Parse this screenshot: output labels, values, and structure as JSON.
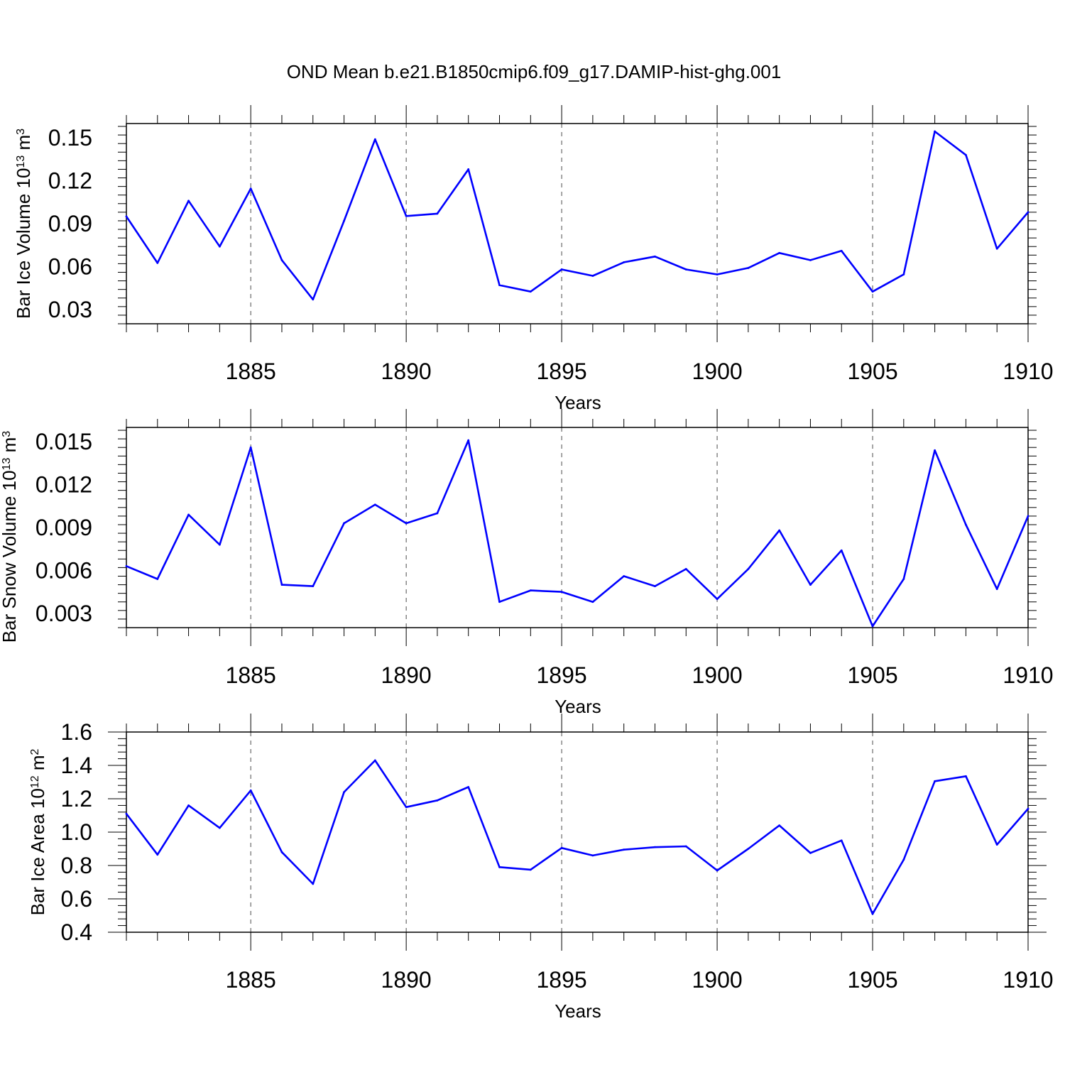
{
  "title": "OND Mean b.e21.B1850cmip6.f09_g17.DAMIP-hist-ghg.001",
  "colors": {
    "line": "#0000ff",
    "axis": "#000000",
    "grid": "#000000"
  },
  "chart_data": [
    {
      "type": "line",
      "title": "",
      "xlabel": "Years",
      "ylabel": "Bar Ice Volume 10",
      "ylabel_exp": "13",
      "ylabel_unit": " m",
      "ylabel_unit_exp": "3",
      "xlim": [
        1881,
        1910
      ],
      "ylim": [
        0.02,
        0.16
      ],
      "x_ticks": [
        1885,
        1890,
        1895,
        1900,
        1905,
        1910
      ],
      "y_ticks": [
        0.03,
        0.06,
        0.09,
        0.12,
        0.15
      ],
      "y_tick_labels": [
        "0.03",
        "0.06",
        "0.09",
        "0.12",
        "0.15"
      ],
      "grid": "vertical dashed at major x ticks",
      "x": [
        1881,
        1882,
        1883,
        1884,
        1885,
        1886,
        1887,
        1888,
        1889,
        1890,
        1891,
        1892,
        1893,
        1894,
        1895,
        1896,
        1897,
        1898,
        1899,
        1900,
        1901,
        1902,
        1903,
        1904,
        1905,
        1906,
        1907,
        1908,
        1909,
        1910
      ],
      "series": [
        {
          "values": [
            0.095,
            0.0625,
            0.106,
            0.074,
            0.1145,
            0.0645,
            0.037,
            0.092,
            0.149,
            0.0953,
            0.097,
            0.128,
            0.047,
            0.0425,
            0.058,
            0.0535,
            0.063,
            0.067,
            0.058,
            0.0545,
            0.059,
            0.0695,
            0.0645,
            0.071,
            0.0425,
            0.0545,
            0.1545,
            0.138,
            0.0725,
            0.098
          ]
        }
      ]
    },
    {
      "type": "line",
      "title": "",
      "xlabel": "Years",
      "ylabel": "Bar Snow Volume 10",
      "ylabel_exp": "13",
      "ylabel_unit": " m",
      "ylabel_unit_exp": "3",
      "xlim": [
        1881,
        1910
      ],
      "ylim": [
        0.002,
        0.016
      ],
      "x_ticks": [
        1885,
        1890,
        1895,
        1900,
        1905,
        1910
      ],
      "y_ticks": [
        0.003,
        0.006,
        0.009,
        0.012,
        0.015
      ],
      "y_tick_labels": [
        "0.003",
        "0.006",
        "0.009",
        "0.012",
        "0.015"
      ],
      "grid": "vertical dashed at major x ticks",
      "x": [
        1881,
        1882,
        1883,
        1884,
        1885,
        1886,
        1887,
        1888,
        1889,
        1890,
        1891,
        1892,
        1893,
        1894,
        1895,
        1896,
        1897,
        1898,
        1899,
        1900,
        1901,
        1902,
        1903,
        1904,
        1905,
        1906,
        1907,
        1908,
        1909,
        1910
      ],
      "series": [
        {
          "values": [
            0.0063,
            0.0054,
            0.0099,
            0.0078,
            0.0146,
            0.005,
            0.0049,
            0.0093,
            0.0106,
            0.0093,
            0.01,
            0.0151,
            0.0038,
            0.0046,
            0.0045,
            0.0038,
            0.0056,
            0.0049,
            0.0061,
            0.004,
            0.0061,
            0.0088,
            0.005,
            0.0074,
            0.0021,
            0.0054,
            0.0144,
            0.0092,
            0.0047,
            0.0098
          ]
        }
      ]
    },
    {
      "type": "line",
      "title": "",
      "xlabel": "Years",
      "ylabel": "Bar Ice Area 10",
      "ylabel_exp": "12",
      "ylabel_unit": " m",
      "ylabel_unit_exp": "2",
      "xlim": [
        1881,
        1910
      ],
      "ylim": [
        0.4,
        1.6
      ],
      "x_ticks": [
        1885,
        1890,
        1895,
        1900,
        1905,
        1910
      ],
      "y_ticks": [
        0.4,
        0.6,
        0.8,
        1.0,
        1.2,
        1.4,
        1.6
      ],
      "y_tick_labels": [
        "0.4",
        "0.6",
        "0.8",
        "1.0",
        "1.2",
        "1.4",
        "1.6"
      ],
      "grid": "vertical dashed at major x ticks",
      "x": [
        1881,
        1882,
        1883,
        1884,
        1885,
        1886,
        1887,
        1888,
        1889,
        1890,
        1891,
        1892,
        1893,
        1894,
        1895,
        1896,
        1897,
        1898,
        1899,
        1900,
        1901,
        1902,
        1903,
        1904,
        1905,
        1906,
        1907,
        1908,
        1909,
        1910
      ],
      "series": [
        {
          "values": [
            1.11,
            0.865,
            1.16,
            1.025,
            1.25,
            0.88,
            0.69,
            1.24,
            1.43,
            1.15,
            1.19,
            1.27,
            0.79,
            0.775,
            0.905,
            0.86,
            0.895,
            0.91,
            0.915,
            0.77,
            0.9,
            1.04,
            0.875,
            0.95,
            0.51,
            0.835,
            1.305,
            1.335,
            0.925,
            1.14
          ]
        }
      ]
    }
  ]
}
